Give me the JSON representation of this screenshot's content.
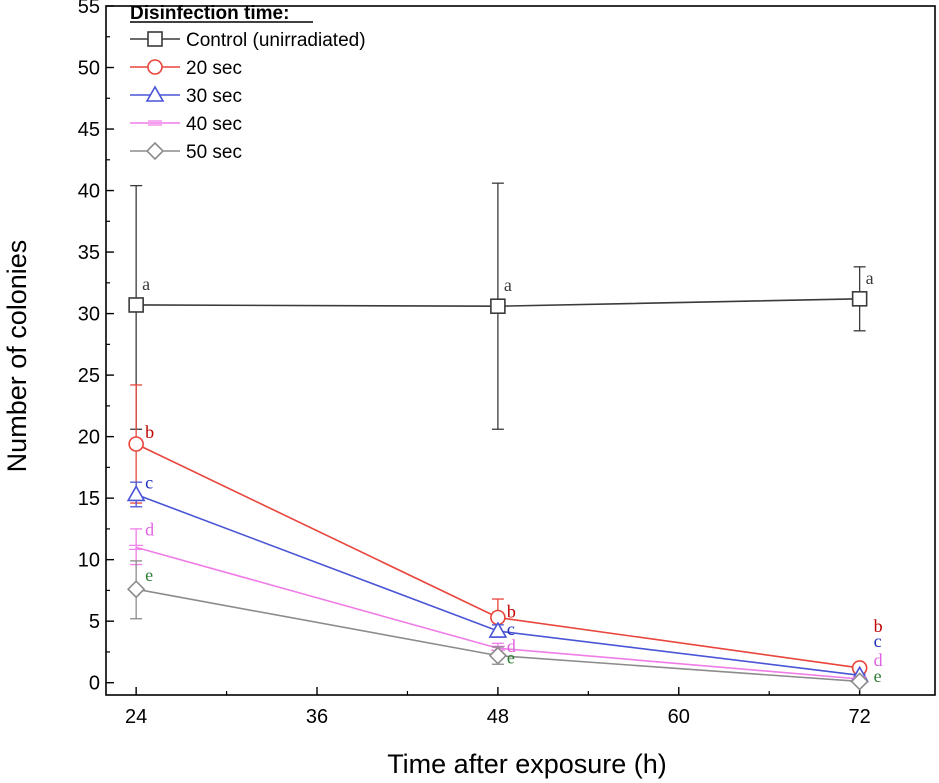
{
  "chart_data": {
    "type": "line",
    "title": "",
    "xlabel": "Time after exposure (h)",
    "ylabel": "Number of colonies",
    "xlim": [
      22,
      77
    ],
    "ylim": [
      -1,
      55
    ],
    "xticks": [
      24,
      36,
      48,
      60,
      72
    ],
    "yticks": [
      0,
      5,
      10,
      15,
      20,
      25,
      30,
      35,
      40,
      45,
      50,
      55
    ],
    "legend": {
      "title": "Disinfection time:",
      "position": "top-left"
    },
    "series": [
      {
        "name": "Control (unirradiated)",
        "color": "#3a3a3a",
        "marker": "square",
        "x": [
          24,
          48,
          72
        ],
        "y": [
          30.7,
          30.6,
          31.2
        ],
        "err_low": [
          20.6,
          20.6,
          28.6
        ],
        "err_high": [
          40.4,
          40.6,
          33.8
        ],
        "sig": [
          "a",
          "a",
          "a"
        ]
      },
      {
        "name": "20 sec",
        "color": "#e8453c",
        "letter_color": "#c00000",
        "marker": "circle",
        "x": [
          24,
          48,
          72
        ],
        "y": [
          19.4,
          5.3,
          1.2
        ],
        "err_low": [
          14.6,
          3.8,
          1.0
        ],
        "err_high": [
          24.2,
          6.8,
          1.4
        ],
        "sig": [
          "b",
          "b",
          "b"
        ]
      },
      {
        "name": "30 sec",
        "color": "#4a55d6",
        "letter_color": "#1f2fb8",
        "marker": "triangle",
        "x": [
          24,
          48,
          72
        ],
        "y": [
          15.3,
          4.2,
          0.6
        ],
        "err_low": [
          14.3,
          3.7,
          0.5
        ],
        "err_high": [
          16.3,
          4.7,
          0.7
        ],
        "sig": [
          "c",
          "c",
          "c"
        ]
      },
      {
        "name": "40 sec",
        "color": "#f07ce8",
        "letter_color": "#e060e0",
        "marker": "dash",
        "x": [
          24,
          48,
          72
        ],
        "y": [
          11.0,
          2.8,
          0.3
        ],
        "err_low": [
          9.6,
          2.4,
          0.2
        ],
        "err_high": [
          12.5,
          3.2,
          0.4
        ],
        "sig": [
          "d",
          "d",
          "d"
        ]
      },
      {
        "name": "50 sec",
        "color": "#8c8c8c",
        "letter_color": "#2e7d32",
        "marker": "diamond",
        "x": [
          24,
          48,
          72
        ],
        "y": [
          7.6,
          2.2,
          0.1
        ],
        "err_low": [
          5.2,
          1.5,
          0.0
        ],
        "err_high": [
          9.9,
          2.9,
          0.2
        ],
        "sig": [
          "e",
          "e",
          "e"
        ]
      }
    ]
  }
}
